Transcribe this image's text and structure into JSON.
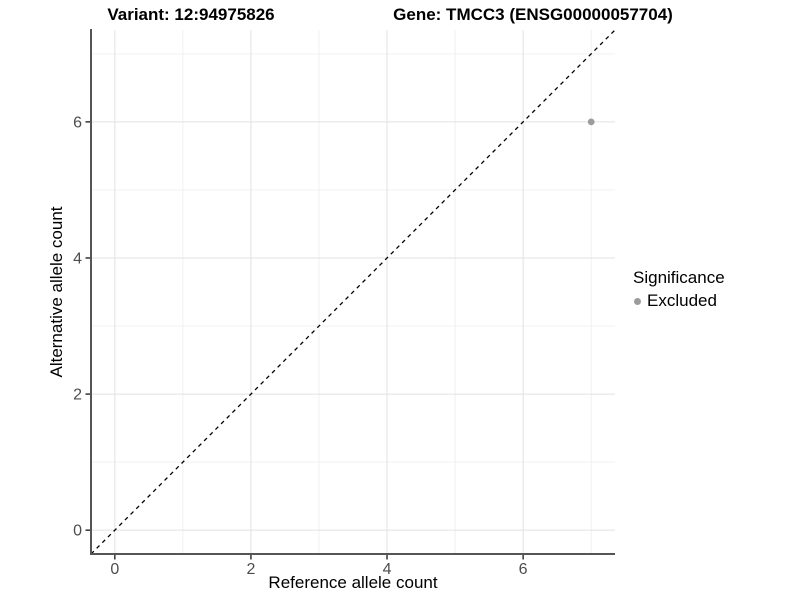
{
  "titles": {
    "variant": "Variant: 12:94975826",
    "gene": "Gene: TMCC3 (ENSG00000057704)"
  },
  "axes": {
    "x_label": "Reference allele count",
    "y_label": "Alternative allele count"
  },
  "legend": {
    "title": "Significance",
    "entries": [
      {
        "label": "Excluded",
        "color": "#9C9C9C"
      }
    ]
  },
  "colors": {
    "background": "#FFFFFF",
    "grid_major": "#E2E2E2",
    "grid_minor": "#F0F0F0",
    "axis_line": "#555555",
    "tick_mark": "#333333",
    "tick_label": "#4D4D4D",
    "title_text": "#000000",
    "point": "#9C9C9C",
    "reference_line": "#000000"
  },
  "chart_data": {
    "type": "scatter",
    "title": "Variant: 12:94975826    Gene: TMCC3 (ENSG00000057704)",
    "xlabel": "Reference allele count",
    "ylabel": "Alternative allele count",
    "xlim": [
      -0.35,
      7.35
    ],
    "ylim": [
      -0.35,
      7.35
    ],
    "x_ticks": [
      0,
      2,
      4,
      6
    ],
    "y_ticks": [
      0,
      2,
      4,
      6
    ],
    "x_minor_ticks": [
      1,
      3,
      5,
      7
    ],
    "y_minor_ticks": [
      1,
      3,
      5,
      7
    ],
    "grid": true,
    "legend_position": "right",
    "legend_title": "Significance",
    "series": [
      {
        "name": "Excluded",
        "color": "#9C9C9C",
        "point_radius": 3.4,
        "points": [
          {
            "x": 7,
            "y": 6
          }
        ]
      }
    ],
    "reference_line": {
      "kind": "identity y=x",
      "style": "dashed",
      "color": "#000000",
      "from": [
        -0.35,
        -0.35
      ],
      "to": [
        7.35,
        7.35
      ]
    }
  }
}
